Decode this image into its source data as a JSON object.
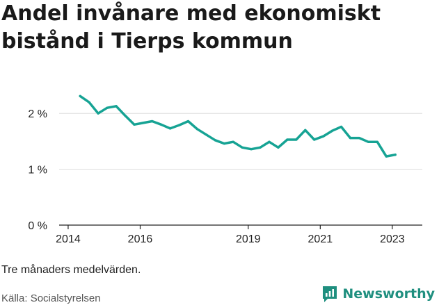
{
  "title": "Andel invånare med ekonomiskt bistånd i Tierps kommun",
  "note": "Tre månaders medelvärden.",
  "source": "Källa: Socialstyrelsen",
  "brand": {
    "name": "Newsworthy",
    "icon": "newsworthy-logo-icon",
    "color": "#1f8f7f"
  },
  "colors": {
    "line": "#16a394",
    "grid": "#dddddd",
    "axis": "#222222"
  },
  "chart_data": {
    "type": "line",
    "title": "Andel invånare med ekonomiskt bistånd i Tierps kommun",
    "xlabel": "",
    "ylabel": "",
    "ylim": [
      0,
      2.6
    ],
    "xlim": [
      "2013-10",
      "2023-11"
    ],
    "y_ticks": [
      0,
      1,
      2
    ],
    "y_tick_labels": [
      "0 %",
      "1 %",
      "2 %"
    ],
    "x_ticks": [
      "2014-01",
      "2016-01",
      "2019-01",
      "2021-01",
      "2023-01"
    ],
    "x_tick_labels": [
      "2014",
      "2016",
      "2019",
      "2021",
      "2023"
    ],
    "grid": true,
    "series": [
      {
        "x": [
          "2014-05",
          "2014-08",
          "2014-11",
          "2015-02",
          "2015-05",
          "2015-08",
          "2015-11",
          "2016-02",
          "2016-05",
          "2016-08",
          "2016-11",
          "2017-02",
          "2017-05",
          "2017-08",
          "2017-11",
          "2018-02",
          "2018-05",
          "2018-08",
          "2018-11",
          "2019-02",
          "2019-05",
          "2019-08",
          "2019-11",
          "2020-02",
          "2020-05",
          "2020-08",
          "2020-11",
          "2021-02",
          "2021-05",
          "2021-08",
          "2021-11",
          "2022-02",
          "2022-05",
          "2022-08",
          "2022-11",
          "2023-02"
        ],
        "values": [
          2.31,
          2.2,
          2.0,
          2.1,
          2.13,
          1.96,
          1.8,
          1.83,
          1.86,
          1.8,
          1.73,
          1.79,
          1.86,
          1.72,
          1.62,
          1.52,
          1.46,
          1.49,
          1.39,
          1.36,
          1.39,
          1.49,
          1.39,
          1.53,
          1.53,
          1.7,
          1.53,
          1.59,
          1.69,
          1.76,
          1.56,
          1.56,
          1.49,
          1.49,
          1.23,
          1.26
        ]
      }
    ]
  }
}
